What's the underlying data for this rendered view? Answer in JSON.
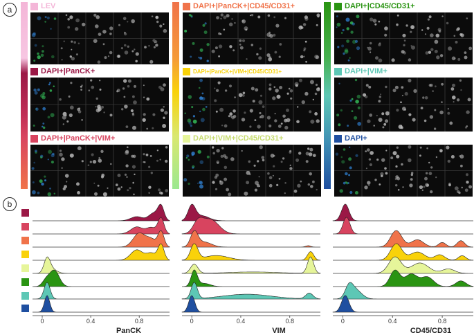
{
  "panel_labels": {
    "a": "a",
    "b": "b"
  },
  "groups": [
    {
      "id": "lev",
      "title": "LEV",
      "color": "#f4b6d8"
    },
    {
      "id": "dapi_panck",
      "title": "DAPI+|PanCK+",
      "color": "#9b1846"
    },
    {
      "id": "dapi_panck_vim",
      "title": "DAPI+|PanCK+|VIM+",
      "color": "#d8445f"
    },
    {
      "id": "dapi_panck_cd45",
      "title": "DAPI+|PanCK+|CD45/CD31+",
      "color": "#f0734a"
    },
    {
      "id": "dapi_panck_vim_cd45",
      "title": "DAPI+|PanCK+|VIM+|CD45/CD31+",
      "color": "#f9d20a"
    },
    {
      "id": "dapi_vim_cd45",
      "title": "DAPI+|VIM+|CD45/CD31+",
      "color": "#e6f59a"
    },
    {
      "id": "dapi_cd45",
      "title": "DAPI+|CD45/CD31+",
      "color": "#2a9412"
    },
    {
      "id": "dapi_vim",
      "title": "DAPI+|VIM+",
      "color": "#5dc7b5"
    },
    {
      "id": "dapi",
      "title": "DAPI+",
      "color": "#1f4fa0"
    }
  ],
  "colors": {
    "title_fg": "#e35a92"
  },
  "chart_data": {
    "type": "ridgeline",
    "rows": [
      "DAPI+|PanCK+",
      "DAPI+|PanCK+|VIM+",
      "DAPI+|PanCK+|CD45/CD31+",
      "DAPI+|PanCK+|VIM+|CD45/CD31+",
      "DAPI+|VIM+|CD45/CD31+",
      "DAPI+|CD45/CD31+",
      "DAPI+|VIM+",
      "DAPI+"
    ],
    "row_colors": [
      "#9b1846",
      "#d8445f",
      "#f0734a",
      "#f9d20a",
      "#e6f59a",
      "#2a9412",
      "#5dc7b5",
      "#1f4fa0"
    ],
    "xlim": [
      -0.08,
      1.05
    ],
    "ticks": [
      0,
      0.4,
      0.8
    ],
    "tick_labels": [
      "0",
      "0.4",
      "0.8"
    ],
    "panels": [
      {
        "xlabel": "PanCK",
        "rows": [
          [
            [
              0.78,
              0.3,
              0.05
            ],
            [
              0.92,
              0.55,
              0.04
            ],
            [
              0.98,
              1.0,
              0.025
            ]
          ],
          [
            [
              0.78,
              0.45,
              0.05
            ],
            [
              0.9,
              0.4,
              0.04
            ],
            [
              0.98,
              1.0,
              0.025
            ]
          ],
          [
            [
              0.8,
              0.85,
              0.05
            ],
            [
              0.9,
              0.45,
              0.04
            ],
            [
              0.98,
              0.95,
              0.025
            ]
          ],
          [
            [
              0.78,
              0.6,
              0.05
            ],
            [
              0.9,
              0.4,
              0.04
            ],
            [
              0.98,
              0.9,
              0.025
            ]
          ],
          [
            [
              0.04,
              1.0,
              0.025
            ],
            [
              0.08,
              0.3,
              0.04
            ]
          ],
          [
            [
              0.1,
              0.85,
              0.04
            ],
            [
              0.03,
              0.3,
              0.03
            ]
          ],
          [
            [
              0.04,
              1.0,
              0.025
            ]
          ],
          [
            [
              0.04,
              1.0,
              0.022
            ]
          ]
        ]
      },
      {
        "xlabel": "VIM",
        "rows": [
          [
            [
              0.0,
              1.0,
              0.03
            ],
            [
              0.08,
              0.35,
              0.06
            ]
          ],
          [
            [
              0.05,
              0.6,
              0.04
            ],
            [
              0.15,
              0.85,
              0.07
            ]
          ],
          [
            [
              0.02,
              1.0,
              0.03
            ],
            [
              0.1,
              0.35,
              0.06
            ],
            [
              0.95,
              0.1,
              0.02
            ]
          ],
          [
            [
              0.02,
              1.0,
              0.03
            ],
            [
              0.2,
              0.3,
              0.1
            ],
            [
              0.97,
              0.55,
              0.025
            ]
          ],
          [
            [
              0.02,
              0.5,
              0.03
            ],
            [
              0.5,
              0.08,
              0.2
            ],
            [
              0.97,
              0.9,
              0.025
            ]
          ],
          [
            [
              0.02,
              1.0,
              0.025
            ],
            [
              0.1,
              0.2,
              0.05
            ]
          ],
          [
            [
              0.02,
              0.85,
              0.025
            ],
            [
              0.45,
              0.25,
              0.2
            ],
            [
              0.96,
              0.3,
              0.03
            ]
          ],
          [
            [
              0.0,
              1.0,
              0.025
            ]
          ]
        ]
      },
      {
        "xlabel": "CD45/CD31",
        "rows": [
          [
            [
              0.02,
              1.0,
              0.03
            ]
          ],
          [
            [
              0.03,
              1.0,
              0.028
            ]
          ],
          [
            [
              0.43,
              0.9,
              0.045
            ],
            [
              0.6,
              0.4,
              0.05
            ],
            [
              0.8,
              0.25,
              0.03
            ],
            [
              0.95,
              0.35,
              0.03
            ]
          ],
          [
            [
              0.43,
              0.9,
              0.045
            ],
            [
              0.6,
              0.45,
              0.06
            ],
            [
              0.78,
              0.3,
              0.04
            ],
            [
              0.96,
              0.25,
              0.03
            ]
          ],
          [
            [
              0.42,
              0.55,
              0.05
            ],
            [
              0.62,
              0.35,
              0.07
            ],
            [
              0.85,
              0.15,
              0.05
            ]
          ],
          [
            [
              0.42,
              0.85,
              0.04
            ],
            [
              0.55,
              0.65,
              0.05
            ],
            [
              0.68,
              0.5,
              0.05
            ],
            [
              0.95,
              0.3,
              0.04
            ]
          ],
          [
            [
              0.05,
              0.55,
              0.03
            ],
            [
              0.1,
              0.5,
              0.05
            ]
          ],
          [
            [
              0.02,
              1.0,
              0.03
            ]
          ]
        ]
      }
    ]
  }
}
